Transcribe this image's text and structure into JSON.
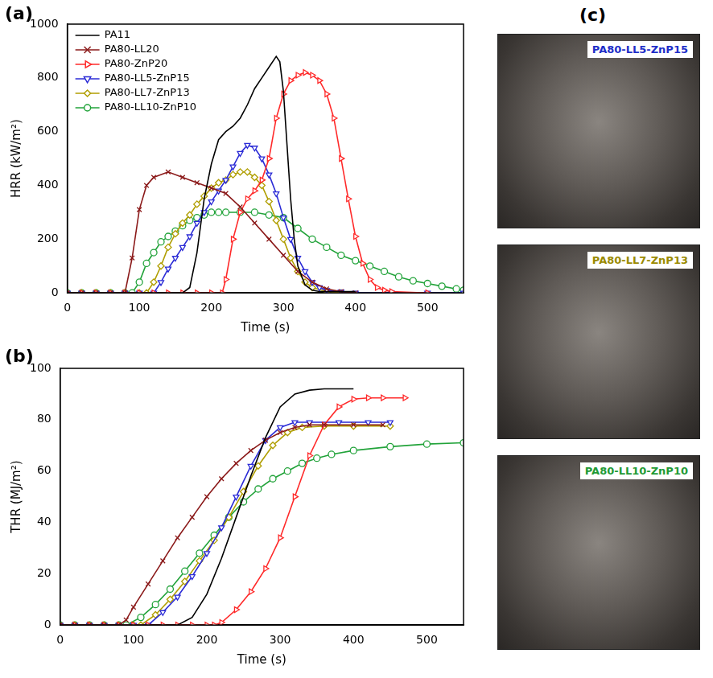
{
  "chart_data": [
    {
      "type": "line",
      "panel_label": "(a)",
      "x_label": "Time (s)",
      "y_label": "HRR (kW/m²)",
      "xlim": [
        0,
        550
      ],
      "xticks": [
        0,
        100,
        200,
        300,
        400,
        500
      ],
      "ylim": [
        0,
        1000
      ],
      "yticks": [
        0,
        200,
        400,
        600,
        800,
        1000
      ],
      "grid": false,
      "legend": "upper left",
      "series": [
        {
          "name": "PA11",
          "color": "#000000",
          "marker": "none",
          "x": [
            0,
            160,
            170,
            180,
            190,
            200,
            210,
            220,
            230,
            240,
            250,
            260,
            270,
            280,
            290,
            295,
            300,
            305,
            310,
            315,
            320,
            330,
            340,
            350,
            400
          ],
          "values": [
            0,
            0,
            20,
            150,
            350,
            480,
            570,
            600,
            620,
            650,
            700,
            760,
            800,
            840,
            880,
            860,
            750,
            550,
            350,
            200,
            100,
            30,
            10,
            5,
            5
          ]
        },
        {
          "name": "PA80-LL20",
          "color": "#8b1a1a",
          "marker": "x",
          "x": [
            0,
            20,
            40,
            60,
            80,
            90,
            100,
            110,
            120,
            140,
            160,
            180,
            200,
            220,
            240,
            260,
            280,
            300,
            320,
            340,
            360,
            380,
            400
          ],
          "values": [
            0,
            0,
            0,
            0,
            0,
            130,
            310,
            400,
            430,
            450,
            430,
            410,
            390,
            370,
            320,
            260,
            200,
            140,
            80,
            40,
            15,
            5,
            0
          ]
        },
        {
          "name": "PA80-ZnP20",
          "color": "#ff2a2a",
          "marker": "triangle-right",
          "x": [
            0,
            20,
            40,
            60,
            80,
            100,
            120,
            140,
            160,
            180,
            200,
            215,
            220,
            230,
            240,
            250,
            260,
            270,
            280,
            290,
            300,
            310,
            320,
            330,
            340,
            350,
            360,
            370,
            380,
            390,
            400,
            410,
            420,
            430,
            440,
            450,
            500
          ],
          "values": [
            0,
            0,
            0,
            0,
            0,
            0,
            0,
            0,
            0,
            0,
            0,
            0,
            50,
            200,
            300,
            350,
            380,
            420,
            500,
            650,
            740,
            790,
            810,
            820,
            810,
            790,
            740,
            650,
            500,
            350,
            210,
            110,
            50,
            20,
            10,
            5,
            0
          ]
        },
        {
          "name": "PA80-LL5-ZnP15",
          "color": "#2b2bd6",
          "marker": "triangle-down",
          "x": [
            0,
            20,
            40,
            60,
            80,
            100,
            120,
            130,
            140,
            150,
            160,
            170,
            180,
            190,
            200,
            210,
            220,
            230,
            240,
            250,
            260,
            270,
            280,
            290,
            300,
            310,
            320,
            330,
            340,
            350,
            360,
            380,
            400,
            450,
            500,
            550
          ],
          "values": [
            0,
            0,
            0,
            0,
            0,
            0,
            0,
            40,
            90,
            130,
            170,
            210,
            260,
            300,
            340,
            380,
            420,
            470,
            520,
            550,
            540,
            500,
            440,
            370,
            280,
            200,
            130,
            80,
            40,
            20,
            10,
            5,
            0,
            0,
            0,
            0
          ]
        },
        {
          "name": "PA80-LL7-ZnP13",
          "color": "#b09e00",
          "marker": "diamond",
          "x": [
            0,
            20,
            40,
            60,
            80,
            100,
            110,
            120,
            130,
            140,
            150,
            160,
            170,
            180,
            190,
            200,
            210,
            220,
            230,
            240,
            250,
            260,
            270,
            280,
            290,
            300,
            310,
            320,
            330,
            340,
            360,
            380
          ],
          "values": [
            0,
            0,
            0,
            0,
            0,
            0,
            0,
            40,
            100,
            170,
            220,
            260,
            290,
            330,
            360,
            390,
            410,
            420,
            440,
            450,
            450,
            430,
            400,
            340,
            270,
            200,
            130,
            80,
            40,
            20,
            5,
            0
          ]
        },
        {
          "name": "PA80-LL10-ZnP10",
          "color": "#22a33a",
          "marker": "circle",
          "x": [
            0,
            20,
            40,
            60,
            80,
            90,
            100,
            110,
            120,
            130,
            140,
            150,
            160,
            170,
            180,
            190,
            200,
            210,
            220,
            240,
            260,
            280,
            300,
            320,
            340,
            360,
            380,
            400,
            420,
            440,
            460,
            480,
            500,
            520,
            540,
            550
          ],
          "values": [
            0,
            0,
            0,
            0,
            0,
            0,
            40,
            110,
            150,
            190,
            210,
            230,
            250,
            270,
            280,
            290,
            300,
            300,
            300,
            300,
            300,
            290,
            280,
            240,
            200,
            170,
            140,
            120,
            100,
            80,
            60,
            45,
            35,
            25,
            15,
            10
          ]
        }
      ]
    },
    {
      "type": "line",
      "panel_label": "(b)",
      "x_label": "Time (s)",
      "y_label": "THR (MJ/m²)",
      "xlim": [
        0,
        550
      ],
      "xticks": [
        0,
        100,
        200,
        300,
        400,
        500
      ],
      "ylim": [
        0,
        100
      ],
      "yticks": [
        0,
        20,
        40,
        60,
        80,
        100
      ],
      "grid": false,
      "series": [
        {
          "color": "#000000",
          "marker": "none",
          "x": [
            0,
            160,
            180,
            200,
            220,
            240,
            260,
            280,
            300,
            320,
            340,
            360,
            400
          ],
          "values": [
            0,
            0,
            3,
            12,
            26,
            42,
            58,
            73,
            85,
            90,
            91.5,
            92,
            92
          ]
        },
        {
          "color": "#8b1a1a",
          "marker": "x",
          "x": [
            0,
            20,
            40,
            60,
            80,
            90,
            100,
            120,
            140,
            160,
            180,
            200,
            220,
            240,
            260,
            280,
            300,
            320,
            340,
            360,
            400,
            440
          ],
          "values": [
            0,
            0,
            0,
            0,
            0,
            2,
            7,
            16,
            25,
            34,
            42,
            50,
            57,
            63,
            68,
            72,
            75,
            77,
            78,
            78,
            78,
            78
          ]
        },
        {
          "color": "#ff2a2a",
          "marker": "triangle-right",
          "x": [
            0,
            20,
            40,
            60,
            80,
            100,
            120,
            140,
            160,
            180,
            200,
            210,
            220,
            240,
            260,
            280,
            300,
            320,
            340,
            360,
            380,
            400,
            420,
            440,
            470
          ],
          "values": [
            0,
            0,
            0,
            0,
            0,
            0,
            0,
            0,
            0,
            0,
            0,
            0,
            1,
            6,
            13,
            22,
            34,
            50,
            66,
            78,
            85,
            88,
            88.5,
            88.5,
            88.5
          ]
        },
        {
          "color": "#2b2bd6",
          "marker": "triangle-down",
          "x": [
            0,
            20,
            40,
            60,
            80,
            100,
            120,
            140,
            160,
            180,
            200,
            220,
            240,
            260,
            280,
            300,
            320,
            340,
            380,
            420,
            450
          ],
          "values": [
            0,
            0,
            0,
            0,
            0,
            0,
            0,
            5,
            11,
            19,
            28,
            38,
            50,
            62,
            72,
            77,
            79,
            79,
            79,
            79,
            79
          ]
        },
        {
          "color": "#b09e00",
          "marker": "diamond",
          "x": [
            0,
            20,
            40,
            60,
            80,
            100,
            110,
            130,
            150,
            170,
            190,
            210,
            230,
            250,
            270,
            290,
            310,
            330,
            360,
            400,
            450
          ],
          "values": [
            0,
            0,
            0,
            0,
            0,
            0,
            0,
            4,
            10,
            17,
            25,
            33,
            42,
            52,
            62,
            70,
            75,
            77,
            77.5,
            77.5,
            77.5
          ]
        },
        {
          "color": "#22a33a",
          "marker": "circle",
          "x": [
            0,
            20,
            40,
            60,
            80,
            90,
            110,
            130,
            150,
            170,
            190,
            210,
            230,
            250,
            270,
            290,
            310,
            330,
            350,
            370,
            400,
            450,
            500,
            550
          ],
          "values": [
            0,
            0,
            0,
            0,
            0,
            0,
            3,
            8,
            14,
            21,
            28,
            35,
            42,
            48,
            53,
            57,
            60,
            63,
            65,
            66.5,
            68,
            69.5,
            70.5,
            71
          ]
        }
      ]
    }
  ],
  "photo_panel": {
    "panel_label": "(c)",
    "photos": [
      {
        "label": "PA80-LL5-ZnP15",
        "color": "#1f2fc8"
      },
      {
        "label": "PA80-LL7-ZnP13",
        "color": "#9a8a00"
      },
      {
        "label": "PA80-LL10-ZnP10",
        "color": "#1f9a35"
      }
    ]
  }
}
